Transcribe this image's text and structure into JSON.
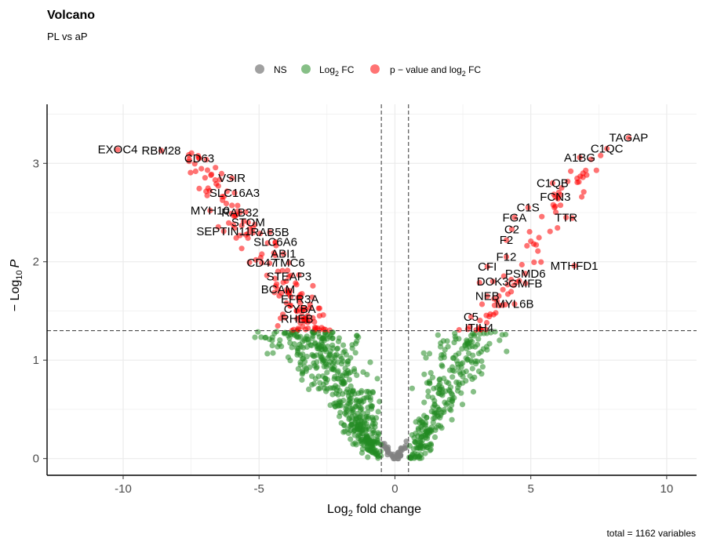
{
  "chart_data": {
    "type": "scatter",
    "title": "Volcano",
    "subtitle": "PL vs aP",
    "xlabel": "Log2 fold change",
    "xlabel_base": "Log",
    "xlabel_sub": "2",
    "xlabel_rest": " fold change",
    "ylabel": "−Log10 P",
    "ylabel_prefix": "− Log",
    "ylabel_sub": "10",
    "ylabel_var": "P",
    "caption": "total = 1162 variables",
    "xlim": [
      -12.8,
      11.1
    ],
    "ylim": [
      -0.17,
      3.6
    ],
    "x_ticks": [
      -10,
      -5,
      0,
      5,
      10
    ],
    "x_tick_labels": [
      "-10",
      "-5",
      "0",
      "5",
      "10"
    ],
    "y_ticks": [
      0,
      1,
      2,
      3
    ],
    "y_tick_labels": [
      "0",
      "1",
      "2",
      "3"
    ],
    "fc_cutoff": 0.5,
    "p_cutoff": 1.3,
    "grid": true,
    "legend_position": "top",
    "legend": [
      {
        "key": "ns",
        "label": "NS",
        "color": "#808080"
      },
      {
        "key": "fc",
        "label": "Log",
        "sub": "2",
        "rest": " FC",
        "color": "#228B22"
      },
      {
        "key": "pfc",
        "label": "p − value and log",
        "sub": "2",
        "rest": " FC",
        "color": "#FF0000"
      }
    ],
    "labels": [
      {
        "text": "EXOC4",
        "x": -10.2,
        "y": 3.14
      },
      {
        "text": "RBM28",
        "x": -8.6,
        "y": 3.13
      },
      {
        "text": "CD63",
        "x": -7.2,
        "y": 3.05
      },
      {
        "text": "VSIR",
        "x": -6.0,
        "y": 2.85
      },
      {
        "text": "SLC16A3",
        "x": -5.9,
        "y": 2.7
      },
      {
        "text": "MYH10",
        "x": -6.8,
        "y": 2.52
      },
      {
        "text": "RAB32",
        "x": -5.7,
        "y": 2.5
      },
      {
        "text": "STOM",
        "x": -5.4,
        "y": 2.4
      },
      {
        "text": "SEPTIN11",
        "x": -6.3,
        "y": 2.31
      },
      {
        "text": "RAB5B",
        "x": -4.6,
        "y": 2.3
      },
      {
        "text": "SLC6A6",
        "x": -4.4,
        "y": 2.2
      },
      {
        "text": "ABI1",
        "x": -4.1,
        "y": 2.08
      },
      {
        "text": "CD47",
        "x": -4.9,
        "y": 1.99
      },
      {
        "text": "TMC6",
        "x": -3.9,
        "y": 1.99
      },
      {
        "text": "STEAP3",
        "x": -3.9,
        "y": 1.85
      },
      {
        "text": "BCAM",
        "x": -4.3,
        "y": 1.72
      },
      {
        "text": "EFR3A",
        "x": -3.5,
        "y": 1.62
      },
      {
        "text": "CYBA",
        "x": -3.5,
        "y": 1.52
      },
      {
        "text": "RHEB",
        "x": -3.6,
        "y": 1.42
      },
      {
        "text": "TAGAP",
        "x": 8.6,
        "y": 3.26
      },
      {
        "text": "C1QC",
        "x": 7.8,
        "y": 3.15
      },
      {
        "text": "A1BG",
        "x": 6.8,
        "y": 3.06
      },
      {
        "text": "C1QB",
        "x": 5.8,
        "y": 2.8
      },
      {
        "text": "FCN3",
        "x": 5.9,
        "y": 2.66
      },
      {
        "text": "C1S",
        "x": 4.9,
        "y": 2.55
      },
      {
        "text": "TTR",
        "x": 6.3,
        "y": 2.45
      },
      {
        "text": "FGA",
        "x": 4.4,
        "y": 2.45
      },
      {
        "text": "C2",
        "x": 4.3,
        "y": 2.33
      },
      {
        "text": "F2",
        "x": 4.1,
        "y": 2.22
      },
      {
        "text": "F12",
        "x": 4.1,
        "y": 2.05
      },
      {
        "text": "CFI",
        "x": 3.4,
        "y": 1.95
      },
      {
        "text": "PSMD6",
        "x": 4.8,
        "y": 1.88
      },
      {
        "text": "MTHFD1",
        "x": 6.6,
        "y": 1.96
      },
      {
        "text": "DOK3",
        "x": 3.6,
        "y": 1.8
      },
      {
        "text": "GMFB",
        "x": 4.8,
        "y": 1.78
      },
      {
        "text": "NEB",
        "x": 3.4,
        "y": 1.65
      },
      {
        "text": "MYL6B",
        "x": 4.4,
        "y": 1.57
      },
      {
        "text": "C5",
        "x": 2.8,
        "y": 1.44
      },
      {
        "text": "ITIH4",
        "x": 3.1,
        "y": 1.33
      }
    ]
  },
  "colors": {
    "ns": "#808080",
    "fc": "#228B22",
    "pfc": "#FF0000",
    "grid": "#ebebeb",
    "axis": "#000000"
  }
}
